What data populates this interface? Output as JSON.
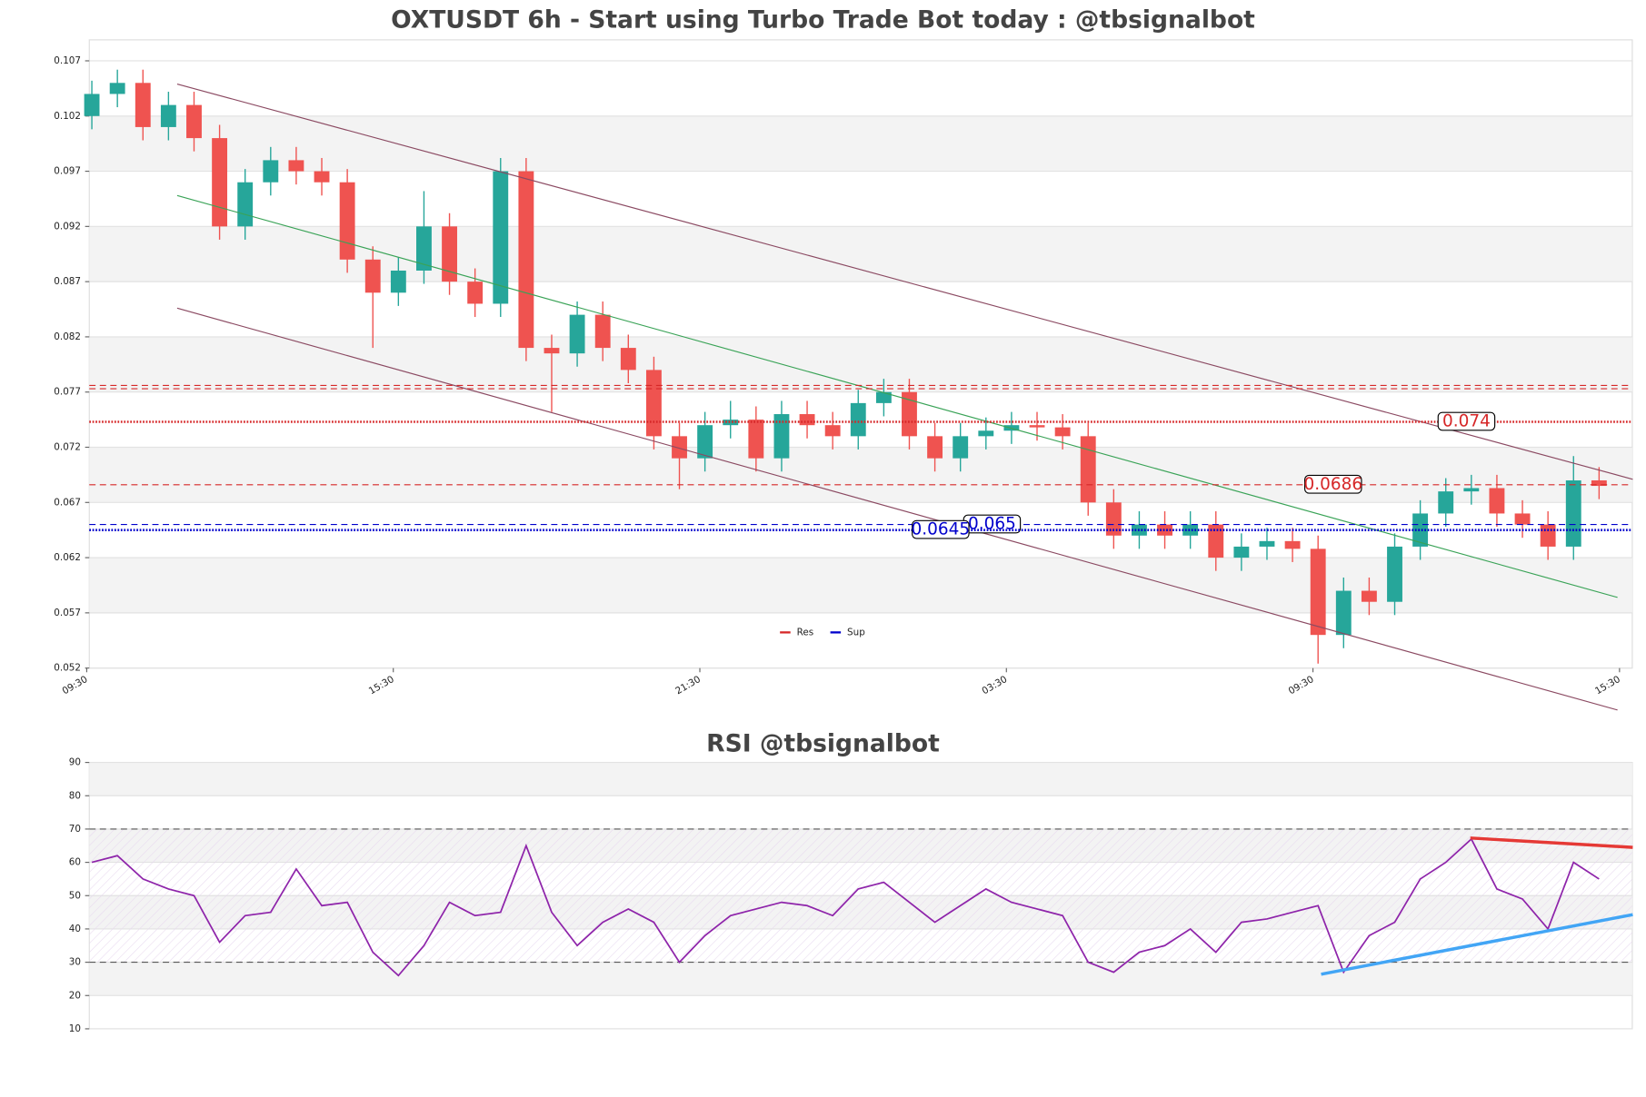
{
  "chart_data": [
    {
      "type": "candlestick",
      "title": "OXTUSDT 6h - Start using Turbo Trade Bot today : @tbsignalbot",
      "x": [
        0.1,
        0.6,
        1.1,
        1.6,
        2.1,
        2.6,
        3.1,
        3.6,
        4.1,
        4.6,
        5.1,
        5.6,
        6.1,
        6.6,
        7.1,
        7.6,
        8.1,
        8.6,
        9.1,
        9.6,
        10.1,
        10.6,
        11.1,
        11.6,
        12.1,
        12.6,
        13.1,
        13.6,
        14.1,
        14.6,
        15.1,
        15.6,
        16.1,
        16.6,
        17.1,
        17.6,
        18.1,
        18.6,
        19.1,
        19.6,
        20.1,
        20.6,
        21.1,
        21.6,
        22.1,
        22.6,
        23.1,
        23.6,
        24.1,
        24.6,
        25.1,
        25.6,
        26.1,
        26.6,
        27.1,
        27.6,
        28.1,
        28.6,
        29.1,
        29.6
      ],
      "open": [
        0.102,
        0.104,
        0.105,
        0.101,
        0.103,
        0.1,
        0.092,
        0.096,
        0.098,
        0.097,
        0.096,
        0.089,
        0.086,
        0.088,
        0.092,
        0.087,
        0.085,
        0.097,
        0.081,
        0.0805,
        0.084,
        0.081,
        0.079,
        0.073,
        0.071,
        0.074,
        0.0745,
        0.071,
        0.075,
        0.074,
        0.073,
        0.076,
        0.077,
        0.073,
        0.071,
        0.073,
        0.0735,
        0.074,
        0.0738,
        0.073,
        0.067,
        0.064,
        0.065,
        0.064,
        0.065,
        0.062,
        0.063,
        0.0635,
        0.0628,
        0.055,
        0.059,
        0.058,
        0.063,
        0.066,
        0.068,
        0.0683,
        0.066,
        0.065,
        0.063,
        0.069
      ],
      "high": [
        0.1052,
        0.1062,
        0.1062,
        0.1042,
        0.1042,
        0.1012,
        0.0972,
        0.0992,
        0.0992,
        0.0982,
        0.0972,
        0.0902,
        0.0892,
        0.0952,
        0.0932,
        0.0882,
        0.0982,
        0.0982,
        0.0822,
        0.0852,
        0.0852,
        0.0822,
        0.0802,
        0.0742,
        0.0752,
        0.0762,
        0.0757,
        0.0762,
        0.0762,
        0.0752,
        0.0772,
        0.0782,
        0.0782,
        0.0742,
        0.0742,
        0.0747,
        0.0752,
        0.0752,
        0.075,
        0.0742,
        0.0682,
        0.0662,
        0.0662,
        0.0662,
        0.0662,
        0.0642,
        0.0647,
        0.0647,
        0.064,
        0.0602,
        0.0602,
        0.0642,
        0.0672,
        0.0692,
        0.0695,
        0.0695,
        0.0672,
        0.0662,
        0.0712,
        0.0702
      ],
      "low": [
        0.1008,
        0.1028,
        0.0998,
        0.0998,
        0.0988,
        0.0908,
        0.0908,
        0.0948,
        0.0958,
        0.0948,
        0.0878,
        0.081,
        0.0848,
        0.0868,
        0.0858,
        0.0838,
        0.0838,
        0.0798,
        0.0752,
        0.0793,
        0.0798,
        0.0778,
        0.0718,
        0.0682,
        0.0698,
        0.0728,
        0.0698,
        0.0698,
        0.0728,
        0.0718,
        0.0718,
        0.0748,
        0.0718,
        0.0698,
        0.0698,
        0.0718,
        0.0723,
        0.0726,
        0.0718,
        0.0658,
        0.0628,
        0.0628,
        0.0628,
        0.0628,
        0.0608,
        0.0608,
        0.0618,
        0.0616,
        0.0524,
        0.0538,
        0.0568,
        0.0568,
        0.0618,
        0.0648,
        0.0668,
        0.0648,
        0.0638,
        0.0618,
        0.0618,
        0.0673
      ],
      "close": [
        0.104,
        0.105,
        0.101,
        0.103,
        0.1,
        0.092,
        0.096,
        0.098,
        0.097,
        0.096,
        0.089,
        0.086,
        0.088,
        0.092,
        0.087,
        0.085,
        0.097,
        0.081,
        0.0805,
        0.084,
        0.081,
        0.079,
        0.073,
        0.071,
        0.074,
        0.0745,
        0.071,
        0.075,
        0.074,
        0.073,
        0.076,
        0.077,
        0.073,
        0.071,
        0.073,
        0.0735,
        0.074,
        0.0738,
        0.073,
        0.067,
        0.064,
        0.065,
        0.064,
        0.065,
        0.062,
        0.063,
        0.0635,
        0.0628,
        0.055,
        0.059,
        0.058,
        0.063,
        0.066,
        0.068,
        0.0683,
        0.066,
        0.065,
        0.063,
        0.069,
        0.0685
      ],
      "up_color": "#26a69a",
      "down_color": "#ef5350",
      "xlim": [
        0.05,
        30.25
      ],
      "xticks": [
        {
          "value": 0,
          "label": "09:30"
        },
        {
          "value": 6,
          "label": "15:30"
        },
        {
          "value": 12,
          "label": "21:30"
        },
        {
          "value": 18,
          "label": "03:30"
        },
        {
          "value": 24,
          "label": "09:30"
        },
        {
          "value": 30,
          "label": "15:30"
        }
      ],
      "ylim": [
        0.052,
        0.1089
      ],
      "yticks": [
        0.052,
        0.057,
        0.062,
        0.067,
        0.072,
        0.077,
        0.082,
        0.087,
        0.092,
        0.097,
        0.102,
        0.107
      ],
      "levels": [
        {
          "value": 0.0776,
          "color": "#d62728",
          "style": "dashed"
        },
        {
          "value": 0.0773,
          "color": "#d62728",
          "style": "dashed"
        },
        {
          "value": 0.0743,
          "label": "0.074",
          "color": "#d62728",
          "style": "dotted"
        },
        {
          "value": 0.0686,
          "label": "0.0686",
          "color": "#d62728",
          "style": "dashed"
        },
        {
          "value": 0.065,
          "label": "0.065",
          "color": "#0000cc",
          "style": "dashed"
        },
        {
          "value": 0.0645,
          "label": "0.0645",
          "color": "#0000cc",
          "style": "dotted"
        }
      ],
      "channels": [
        {
          "x": [
            1.77,
            30.26
          ],
          "y": [
            0.1049,
            0.0691
          ],
          "color": "#8b4a62"
        },
        {
          "x": [
            1.77,
            29.96
          ],
          "y": [
            0.0948,
            0.0584
          ],
          "color": "#3aa357"
        },
        {
          "x": [
            1.77,
            29.96
          ],
          "y": [
            0.0846,
            0.0482
          ],
          "color": "#8b4a62"
        }
      ],
      "legend": [
        {
          "name": "Res",
          "color": "#d62728"
        },
        {
          "name": "Sup",
          "color": "#0000cc"
        }
      ]
    },
    {
      "type": "line",
      "title": "RSI @tbsignalbot",
      "x": [
        0.1,
        0.6,
        1.1,
        1.6,
        2.1,
        2.6,
        3.1,
        3.6,
        4.1,
        4.6,
        5.1,
        5.6,
        6.1,
        6.6,
        7.1,
        7.6,
        8.1,
        8.6,
        9.1,
        9.6,
        10.1,
        10.6,
        11.1,
        11.6,
        12.1,
        12.6,
        13.1,
        13.6,
        14.1,
        14.6,
        15.1,
        15.6,
        16.1,
        16.6,
        17.1,
        17.6,
        18.1,
        18.6,
        19.1,
        19.6,
        20.1,
        20.6,
        21.1,
        21.6,
        22.1,
        22.6,
        23.1,
        23.6,
        24.1,
        24.6,
        25.1,
        25.6,
        26.1,
        26.6,
        27.1,
        27.6,
        28.1,
        28.6,
        29.1,
        29.6
      ],
      "values": [
        60,
        62,
        55,
        52,
        50,
        36,
        44,
        45,
        58,
        47,
        48,
        33,
        26,
        35,
        48,
        44,
        45,
        65,
        45,
        35,
        42,
        46,
        42,
        30,
        38,
        44,
        46,
        48,
        47,
        44,
        52,
        54,
        48,
        42,
        47,
        52,
        48,
        46,
        44,
        30,
        27,
        33,
        35,
        40,
        33,
        42,
        43,
        45,
        47,
        27,
        38,
        42,
        55,
        60,
        67,
        52,
        49,
        40,
        60,
        55
      ],
      "color": "#8e24aa",
      "xlim": [
        0.05,
        30.25
      ],
      "ylim": [
        10,
        90
      ],
      "yticks": [
        10,
        20,
        30,
        40,
        50,
        60,
        70,
        80,
        90
      ],
      "hlines": [
        30,
        70
      ],
      "trendlines": [
        {
          "x": [
            27.08,
            30.26
          ],
          "y": [
            67.3,
            64.5
          ],
          "color": "#e53935"
        },
        {
          "x": [
            24.16,
            30.26
          ],
          "y": [
            26.4,
            44.3
          ],
          "color": "#42a5f5"
        }
      ]
    }
  ]
}
